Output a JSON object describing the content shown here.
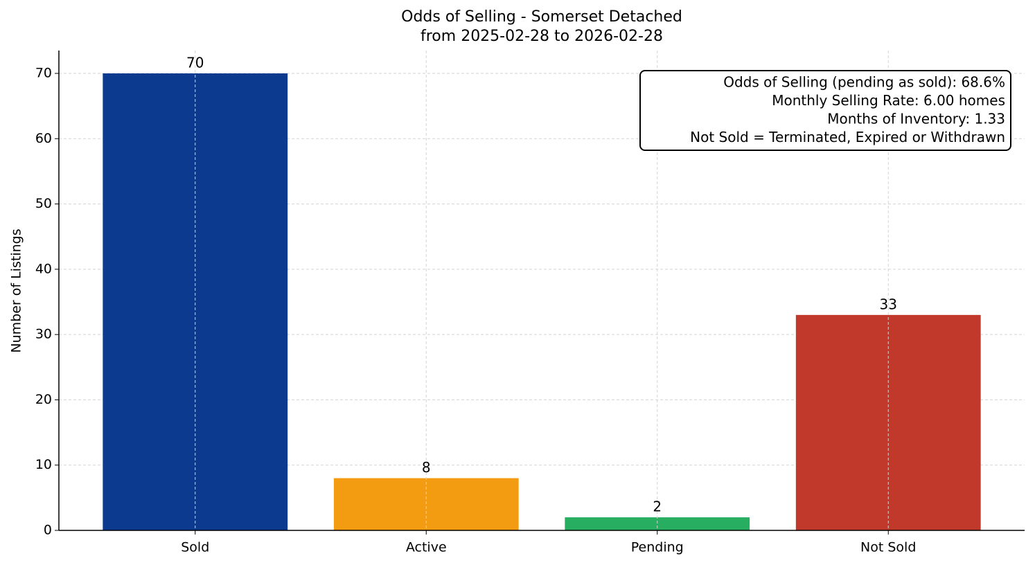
{
  "chart_data": {
    "type": "bar",
    "title": "Odds of Selling - Somerset Detached",
    "subtitle": "from 2025-02-28 to 2026-02-28",
    "y_label": "Number of Listings",
    "categories": [
      "Sold",
      "Active",
      "Pending",
      "Not Sold"
    ],
    "values": [
      70,
      8,
      2,
      33
    ],
    "colors": [
      "#0b3a8f",
      "#f39c12",
      "#27ae60",
      "#c0392b"
    ],
    "ylim": [
      0,
      73.5
    ],
    "yticks": [
      0,
      10,
      20,
      30,
      40,
      50,
      60,
      70
    ],
    "grid": true,
    "annotation": [
      "Odds of Selling (pending as sold): 68.6%",
      "Monthly Selling Rate: 6.00 homes",
      "Months of Inventory: 1.33",
      "Not Sold = Terminated, Expired or Withdrawn"
    ]
  }
}
